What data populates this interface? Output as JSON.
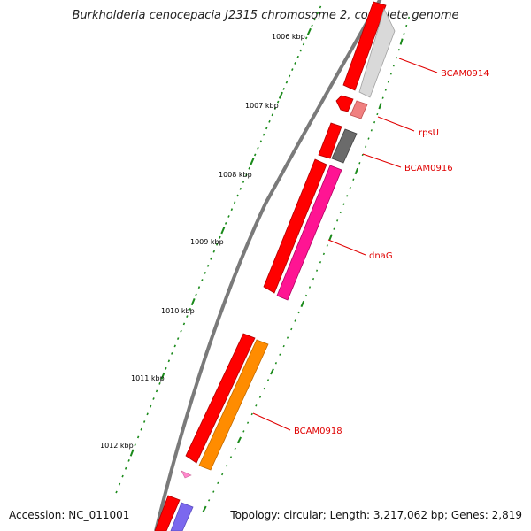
{
  "header": {
    "title": "Burkholderia cenocepacia J2315 chromosome 2, complete genome"
  },
  "footer": {
    "accession": "Accession: NC_011001",
    "summary": "Topology: circular; Length: 3,217,062 bp; Genes: 2,819"
  },
  "scale": {
    "labels": [
      "1006 kbp",
      "1007 kbp",
      "1008 kbp",
      "1009 kbp",
      "1010 kbp",
      "1011 kbp",
      "1012 kbp"
    ],
    "tick_color": "#1a8a1a"
  },
  "genes": [
    {
      "label": "BCAM0914",
      "color": "#d9d9d9"
    },
    {
      "label": "rpsU",
      "color": "#f08080"
    },
    {
      "label": "BCAM0916",
      "color": "#6b6b6b"
    },
    {
      "label": "dnaG",
      "color": "#ff1493"
    },
    {
      "label": "BCAM0918",
      "color": "#ff8c00"
    }
  ],
  "colors": {
    "forward_strand": "#ff0000",
    "backbone": "#7a7a7a",
    "label_color": "#e00000",
    "small_feature_pink": "#ff88cc",
    "small_feature_purple": "#7b68ee"
  }
}
